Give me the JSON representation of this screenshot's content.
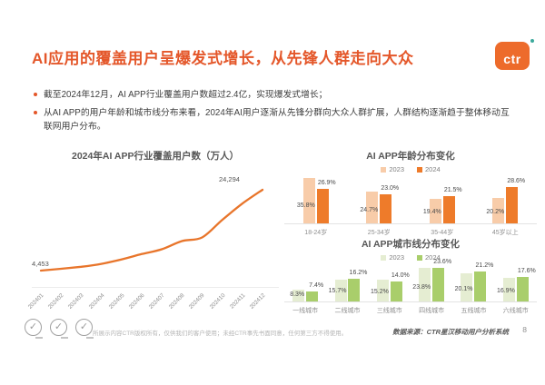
{
  "header": {
    "title": "AI应用的覆盖用户呈爆发式增长，从先锋人群走向大众",
    "logo_text": "ctr",
    "title_color": "#e4572a",
    "logo_color": "#ed6b2b",
    "logo_dot_color": "#3ba99c"
  },
  "bullets": [
    "截至2024年12月，AI APP行业覆盖用户数超过2.4亿，实现爆发式增长；",
    "从AI APP的用户年龄和城市线分布来看，2024年AI用户逐渐从先锋分群向大众人群扩展，人群结构逐渐趋于整体移动互联网用户分布。"
  ],
  "chart_data": [
    {
      "type": "line",
      "title": "2024年AI APP行业覆盖用户数（万人）",
      "x": [
        "202401",
        "202402",
        "202403",
        "202404",
        "202405",
        "202406",
        "202407",
        "202408",
        "202409",
        "202410",
        "202411",
        "202412"
      ],
      "values": [
        4453,
        4900,
        5400,
        6100,
        7200,
        8500,
        9700,
        11700,
        12600,
        16900,
        20900,
        24294
      ],
      "first_label": "4,453",
      "last_label": "24,294",
      "line_color": "#e8752b",
      "ylim": [
        3000,
        26000
      ],
      "grid": false,
      "note": "only first and last points carry data labels"
    },
    {
      "type": "bar",
      "title": "AI APP年龄分布变化",
      "categories": [
        "18-24岁",
        "25-34岁",
        "35-44岁",
        "45岁以上"
      ],
      "series": [
        {
          "name": "2023",
          "color": "#f8cca9",
          "values": [
            35.8,
            24.7,
            19.4,
            20.2
          ]
        },
        {
          "name": "2024",
          "color": "#ee7b2a",
          "values": [
            26.9,
            23.0,
            21.5,
            28.6
          ]
        }
      ],
      "unit": "%",
      "legend_position": "top",
      "ylim": [
        0,
        40
      ]
    },
    {
      "type": "bar",
      "title": "AI APP城市线分布变化",
      "categories": [
        "一线城市",
        "二线城市",
        "三线城市",
        "四线城市",
        "五线城市",
        "六线城市"
      ],
      "series": [
        {
          "name": "2023",
          "color": "#e5edd2",
          "values": [
            8.3,
            15.7,
            15.2,
            23.8,
            20.1,
            16.9
          ]
        },
        {
          "name": "2024",
          "color": "#a9ce6b",
          "values": [
            7.4,
            16.2,
            14.0,
            23.6,
            21.2,
            17.6
          ]
        }
      ],
      "unit": "%",
      "legend_position": "top",
      "ylim": [
        0,
        26
      ]
    }
  ],
  "footer": {
    "copyright": "所展示内容CTR版权所有，仅供我们的客户使用；未经CTR事先书面同意，任何第三方不得使用。",
    "data_source": "数据来源：CTR星汉移动用户分析系统",
    "page_number": "8"
  }
}
